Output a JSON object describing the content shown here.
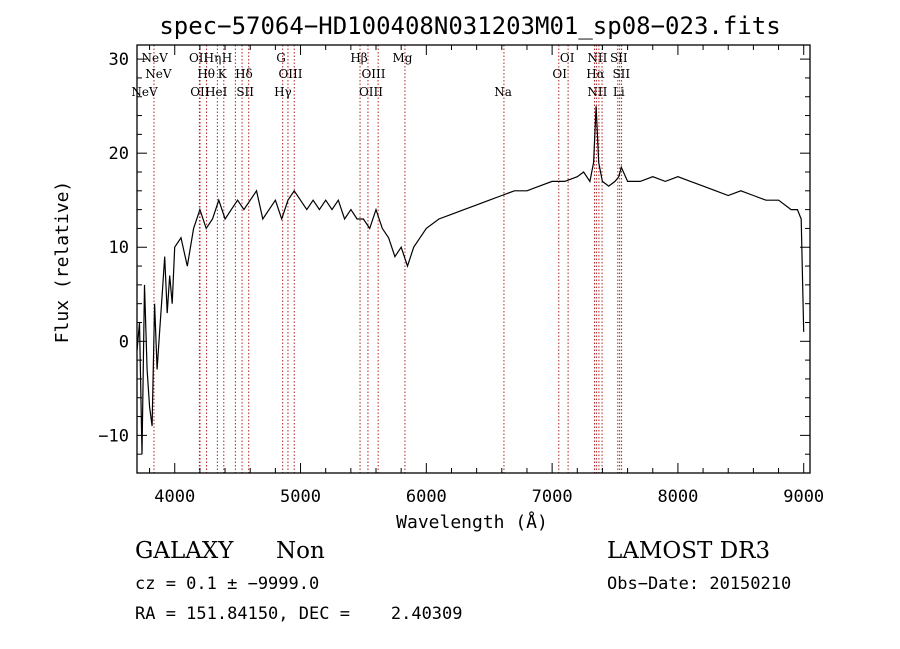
{
  "chart_data": {
    "type": "line",
    "title": "spec−57064−HD100408N031203M01_sp08−023.fits",
    "xlabel": "Wavelength (Å)",
    "ylabel": "Flux (relative)",
    "xlim": [
      3700,
      9050
    ],
    "ylim": [
      -14,
      31.5
    ],
    "xticks": [
      4000,
      5000,
      6000,
      7000,
      8000,
      9000
    ],
    "yticks": [
      -10,
      0,
      10,
      20,
      30
    ],
    "ytick_labels": [
      "−10",
      "0",
      "10",
      "20",
      "30"
    ],
    "series": [
      {
        "name": "flux",
        "x": [
          3700,
          3720,
          3740,
          3760,
          3780,
          3800,
          3820,
          3840,
          3860,
          3880,
          3900,
          3920,
          3940,
          3960,
          3980,
          4000,
          4050,
          4100,
          4150,
          4200,
          4250,
          4300,
          4350,
          4400,
          4450,
          4500,
          4550,
          4600,
          4650,
          4700,
          4750,
          4800,
          4850,
          4900,
          4950,
          5000,
          5050,
          5100,
          5150,
          5200,
          5250,
          5300,
          5350,
          5400,
          5450,
          5500,
          5550,
          5600,
          5650,
          5700,
          5750,
          5800,
          5850,
          5900,
          5950,
          6000,
          6100,
          6200,
          6300,
          6400,
          6500,
          6600,
          6700,
          6800,
          6900,
          7000,
          7100,
          7200,
          7250,
          7300,
          7330,
          7350,
          7370,
          7400,
          7450,
          7500,
          7530,
          7550,
          7600,
          7700,
          7800,
          7900,
          8000,
          8100,
          8200,
          8300,
          8400,
          8500,
          8600,
          8700,
          8800,
          8900,
          8950,
          8980,
          9000
        ],
        "y": [
          -1,
          2,
          -12,
          6,
          -3,
          -7,
          -9,
          4,
          -3,
          1,
          5,
          9,
          3,
          7,
          4,
          10,
          11,
          8,
          12,
          14,
          12,
          13,
          15,
          13,
          14,
          15,
          14,
          15,
          16,
          13,
          14,
          15,
          13,
          15,
          16,
          15,
          14,
          15,
          14,
          15,
          14,
          15,
          13,
          14,
          13,
          13,
          12,
          14,
          12,
          11,
          9,
          10,
          8,
          10,
          11,
          12,
          13,
          13.5,
          14,
          14.5,
          15,
          15.5,
          16,
          16,
          16.5,
          17,
          17,
          17.5,
          18,
          17,
          19,
          25,
          19,
          17,
          16.5,
          17,
          17.5,
          18.5,
          17,
          17,
          17.5,
          17,
          17.5,
          17,
          16.5,
          16,
          15.5,
          16,
          15.5,
          15,
          15,
          14,
          14,
          13,
          1
        ]
      }
    ],
    "lines_top": [
      {
        "label": "NeV",
        "x": 3840
      },
      {
        "label": "OII",
        "x": 4190
      },
      {
        "label": "Hη",
        "x": 4300
      },
      {
        "label": "H",
        "x": 4415
      },
      {
        "label": "G",
        "x": 4845
      },
      {
        "label": "Hβ",
        "x": 5465
      },
      {
        "label": "Mg",
        "x": 5810
      },
      {
        "label": "OI",
        "x": 7120
      },
      {
        "label": "NII",
        "x": 7360
      },
      {
        "label": "SII",
        "x": 7530
      }
    ],
    "lines_mid": [
      {
        "label": "NeV",
        "x": 3870
      },
      {
        "label": "Hθ",
        "x": 4250
      },
      {
        "label": "K",
        "x": 4378
      },
      {
        "label": "Hδ",
        "x": 4550
      },
      {
        "label": "OIII",
        "x": 4920
      },
      {
        "label": "OIII",
        "x": 5580
      },
      {
        "label": "OI",
        "x": 7060
      },
      {
        "label": "Hα",
        "x": 7345
      },
      {
        "label": "SII",
        "x": 7550
      }
    ],
    "lines_low": [
      {
        "label": "NeV",
        "x": 3760
      },
      {
        "label": "OII",
        "x": 4200
      },
      {
        "label": "HeI",
        "x": 4330
      },
      {
        "label": "SII",
        "x": 4560
      },
      {
        "label": "Hγ",
        "x": 4860
      },
      {
        "label": "OIII",
        "x": 5560
      },
      {
        "label": "Na",
        "x": 6610
      },
      {
        "label": "NII",
        "x": 7360
      },
      {
        "label": "Li",
        "x": 7530
      }
    ],
    "marker_lines_x": [
      3835,
      4196,
      4201,
      4253,
      4339,
      4390,
      4482,
      4535,
      4588,
      4858,
      4900,
      4950,
      5473,
      5536,
      5617,
      5830,
      6617,
      7053,
      7127,
      7337,
      7352,
      7372,
      7397,
      7522,
      7537,
      7552
    ]
  },
  "info": {
    "object_class": "GALAXY",
    "subclass": "Non",
    "survey": "LAMOST DR3",
    "cz_line": "cz = 0.1 ± −9999.0",
    "obs_date": "Obs−Date: 20150210",
    "radec_line": "RA = 151.84150, DEC =    2.40309"
  },
  "colors": {
    "axis": "#000000",
    "spectrum": "#000000",
    "marker": "#b22222"
  }
}
